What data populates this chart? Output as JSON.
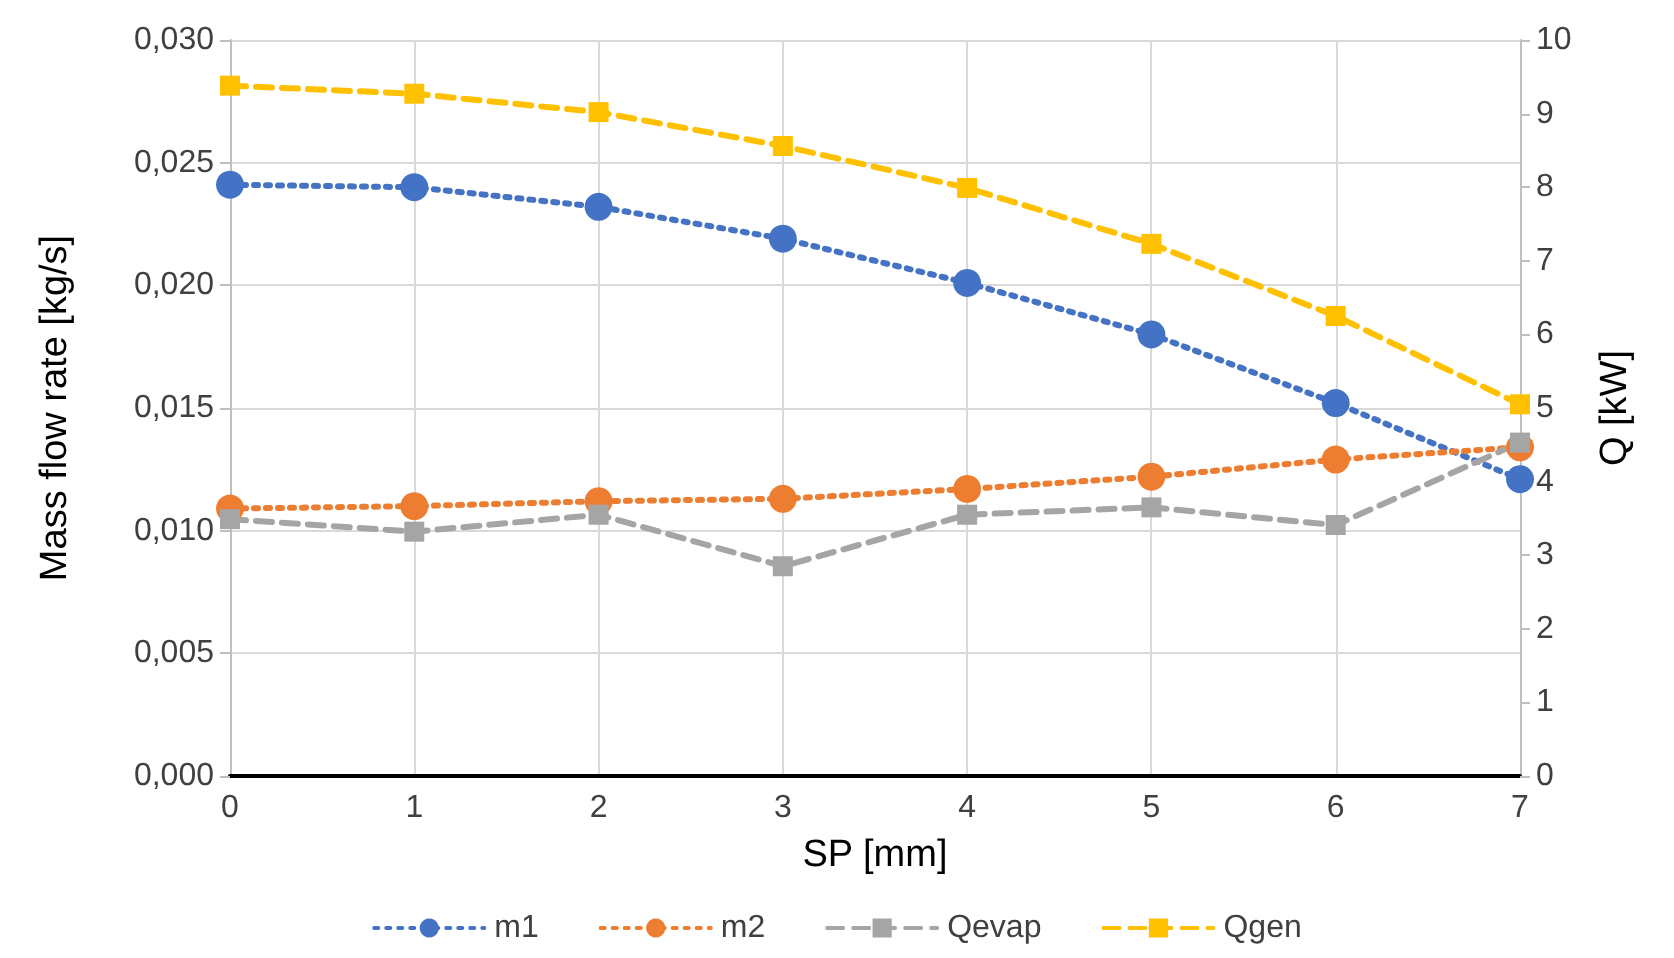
{
  "chart_data": {
    "type": "line",
    "xlabel": "SP [mm]",
    "ylabel": "Mass flow rate [kg/s]",
    "y2label": "Q [kW]",
    "x": [
      0,
      1,
      2,
      3,
      4,
      5,
      6,
      7
    ],
    "xlim": [
      0,
      7
    ],
    "xticks": [
      0,
      1,
      2,
      3,
      4,
      5,
      6,
      7
    ],
    "ylim": [
      0,
      0.03
    ],
    "yticks": [
      {
        "value": 0,
        "label": "0,000"
      },
      {
        "value": 0.005,
        "label": "0,005"
      },
      {
        "value": 0.01,
        "label": "0,010"
      },
      {
        "value": 0.015,
        "label": "0,015"
      },
      {
        "value": 0.02,
        "label": "0,020"
      },
      {
        "value": 0.025,
        "label": "0,025"
      },
      {
        "value": 0.03,
        "label": "0,030"
      }
    ],
    "y2lim": [
      0,
      10
    ],
    "y2ticks": [
      0,
      1,
      2,
      3,
      4,
      5,
      6,
      7,
      8,
      9,
      10
    ],
    "grid": true,
    "legend": "bottom",
    "series": [
      {
        "name": "m1",
        "color": "#4472c4",
        "marker": "circle",
        "line_style": "dotted",
        "values": [
          0.0241,
          0.024,
          0.0232,
          0.0219,
          0.0201,
          0.018,
          0.0152,
          0.0121
        ]
      },
      {
        "name": "m2",
        "color": "#ed7d31",
        "marker": "circle",
        "line_style": "dotted",
        "values": [
          0.0109,
          0.011,
          0.0112,
          0.0113,
          0.0117,
          0.0122,
          0.0129,
          0.0134
        ]
      },
      {
        "name": "Qevap",
        "color": "#a5a5a5",
        "marker": "square",
        "line_style": "dashed",
        "axis": "y2",
        "values": [
          3.49,
          3.32,
          3.55,
          2.85,
          3.55,
          3.65,
          3.41,
          4.53
        ]
      },
      {
        "name": "Qgen",
        "color": "#ffc000",
        "marker": "square",
        "line_style": "dashed",
        "axis": "y2",
        "values": [
          9.38,
          9.27,
          9.02,
          8.56,
          7.99,
          7.23,
          6.25,
          5.05
        ]
      }
    ]
  }
}
